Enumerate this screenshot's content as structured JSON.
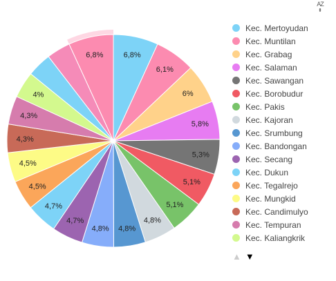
{
  "sort_label": "AZ",
  "chart_data": {
    "type": "pie",
    "title": "",
    "slices": [
      {
        "label": "Kec. Mertoyudan",
        "value": 6.8,
        "value_label": "6,8%",
        "color": "#7dd3f7"
      },
      {
        "label": "Kec. Muntilan",
        "value": 6.1,
        "value_label": "6,1%",
        "color": "#fc8bb0"
      },
      {
        "label": "Kec. Grabag",
        "value": 6.0,
        "value_label": "6%",
        "color": "#ffd28a"
      },
      {
        "label": "Kec. Salaman",
        "value": 5.8,
        "value_label": "5,8%",
        "color": "#e77cf2"
      },
      {
        "label": "Kec. Sawangan",
        "value": 5.3,
        "value_label": "5,3%",
        "color": "#757575"
      },
      {
        "label": "Kec. Borobudur",
        "value": 5.1,
        "value_label": "5,1%",
        "color": "#f05a63"
      },
      {
        "label": "Kec. Pakis",
        "value": 5.1,
        "value_label": "5,1%",
        "color": "#78c369"
      },
      {
        "label": "Kec. Kajoran",
        "value": 4.8,
        "value_label": "4,8%",
        "color": "#d1d9de"
      },
      {
        "label": "Kec. Srumbung",
        "value": 4.8,
        "value_label": "4,8%",
        "color": "#5797d1"
      },
      {
        "label": "Kec. Bandongan",
        "value": 4.8,
        "value_label": "4,8%",
        "color": "#86adfa"
      },
      {
        "label": "Kec. Secang",
        "value": 4.7,
        "value_label": "4,7%",
        "color": "#9c64b0"
      },
      {
        "label": "Kec. Dukun",
        "value": 4.7,
        "value_label": "4,7%",
        "color": "#7dd3f7"
      },
      {
        "label": "Kec. Tegalrejo",
        "value": 4.5,
        "value_label": "4,5%",
        "color": "#fba65a"
      },
      {
        "label": "Kec. Mungkid",
        "value": 4.5,
        "value_label": "4,5%",
        "color": "#fdfb86"
      },
      {
        "label": "Kec. Candimulyo",
        "value": 4.3,
        "value_label": "4,3%",
        "color": "#c86a58"
      },
      {
        "label": "Kec. Tempuran",
        "value": 4.3,
        "value_label": "4,3%",
        "color": "#d67cad"
      },
      {
        "label": "Kec. Kaliangkrik",
        "value": 4.0,
        "value_label": "4%",
        "color": "#d3f98e"
      },
      {
        "label": "",
        "value": 3.7,
        "value_label": "",
        "color": "#7dd3f7"
      },
      {
        "label": "",
        "value": 3.6,
        "value_label": "",
        "color": "#f58bb8"
      },
      {
        "label": "",
        "value": 6.8,
        "value_label": "6,8%",
        "color": "#fc8bb0",
        "highlighted": true
      }
    ]
  },
  "pager": {
    "up_symbol": "▲",
    "down_symbol": "▼"
  }
}
